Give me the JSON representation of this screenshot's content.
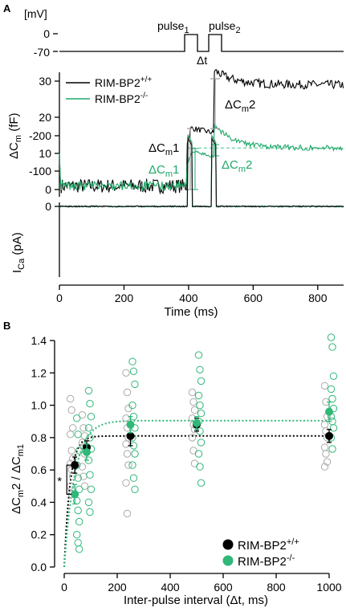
{
  "panel_a": {
    "label": "A",
    "voltage": {
      "unit": "[mV]",
      "tick_labels": [
        "0",
        "-70"
      ],
      "pulse1": {
        "base": "pulse",
        "sub": "1"
      },
      "pulse2": {
        "base": "pulse",
        "sub": "2"
      },
      "delta_t": "Δt"
    },
    "capacitance": {
      "ylabel_pre": "ΔC",
      "ylabel_sub": "m",
      "ylabel_post": " (fF)",
      "ticks": [
        "0",
        "10",
        "20",
        "30"
      ],
      "legend": [
        {
          "base": "RIM-BP2",
          "sup": "+/+",
          "color": "#000000"
        },
        {
          "base": "RIM-BP2",
          "sup": "-/-",
          "color": "#1fa868"
        }
      ],
      "annotations": {
        "wt_dcm1": {
          "pre": "ΔC",
          "sub": "m",
          "post": "1"
        },
        "wt_dcm2": {
          "pre": "ΔC",
          "sub": "m",
          "post": "2"
        },
        "ko_dcm1": {
          "pre": "ΔC",
          "sub": "m",
          "post": "1"
        },
        "ko_dcm2": {
          "pre": "ΔC",
          "sub": "m",
          "post": "2"
        }
      }
    },
    "current": {
      "ylabel_pre": "I",
      "ylabel_sub": "Ca",
      "ylabel_post": " (pA)",
      "ticks": [
        "0",
        "-100",
        "-200"
      ]
    },
    "time_axis": {
      "label": "Time (ms)",
      "ticks": [
        "0",
        "200",
        "400",
        "600",
        "800"
      ]
    }
  },
  "chart_data": {
    "type": "scatter",
    "panel_label": "B",
    "xlabel": "Inter-pulse interval (Δt, ms)",
    "ylabel": {
      "pre": "ΔC",
      "sub": "m",
      "mid": "2 / ΔC",
      "post": "m1"
    },
    "xlim": [
      0,
      1000
    ],
    "ylim": [
      0.0,
      1.4
    ],
    "xticks": [
      0,
      200,
      400,
      600,
      800,
      1000
    ],
    "yticks": [
      "0.0",
      "0.2",
      "0.4",
      "0.6",
      "0.8",
      "1.0",
      "1.2",
      "1.4"
    ],
    "significance": "*",
    "legend_position": "bottom-right",
    "series": [
      {
        "name": "RIM-BP2",
        "sup": "+/+",
        "color": "#000000",
        "raw_color": "#aaaaaa",
        "fit_plateau": 0.81,
        "x": [
          40,
          85,
          250,
          500,
          1000
        ],
        "mean": [
          0.63,
          0.74,
          0.81,
          0.88,
          0.81
        ],
        "sem": [
          0.05,
          0.04,
          0.06,
          0.04,
          0.04
        ],
        "raw": [
          [
            1.04,
            0.97,
            0.86,
            0.82,
            0.72,
            0.67,
            0.64,
            0.6,
            0.56,
            0.5,
            0.45
          ],
          [
            0.94,
            0.86,
            0.81,
            0.77,
            0.74,
            0.7,
            0.62,
            0.56,
            0.5
          ],
          [
            1.2,
            1.08,
            0.98,
            0.92,
            0.86,
            0.8,
            0.76,
            0.7,
            0.63,
            0.52,
            0.33
          ],
          [
            1.08,
            1.02,
            0.97,
            0.92,
            0.88,
            0.85,
            0.8,
            0.72,
            0.64
          ],
          [
            1.12,
            1.02,
            0.93,
            0.88,
            0.84,
            0.8,
            0.74,
            0.7,
            0.65,
            0.62
          ]
        ]
      },
      {
        "name": "RIM-BP2",
        "sup": "-/-",
        "color": "#2fb878",
        "raw_color": "#2fb878",
        "fit_plateau": 0.905,
        "x": [
          40,
          85,
          250,
          500,
          1000
        ],
        "mean": [
          0.45,
          0.71,
          0.88,
          0.89,
          0.96
        ],
        "sem": [
          0.06,
          0.05,
          0.05,
          0.04,
          0.06
        ],
        "raw": [
          [
            0.92,
            0.82,
            0.72,
            0.63,
            0.55,
            0.48,
            0.41,
            0.35,
            0.28,
            0.2,
            0.15,
            0.11
          ],
          [
            1.09,
            1.01,
            0.93,
            0.86,
            0.8,
            0.73,
            0.66,
            0.57,
            0.48,
            0.4,
            0.34
          ],
          [
            1.27,
            1.21,
            1.13,
            1.0,
            0.93,
            0.86,
            0.8,
            0.75,
            0.7,
            0.63,
            0.55,
            0.48
          ],
          [
            1.31,
            1.22,
            1.15,
            1.06,
            1.0,
            0.95,
            0.9,
            0.84,
            0.77,
            0.7,
            0.62,
            0.52
          ],
          [
            1.42,
            1.36,
            1.18,
            1.1,
            1.04,
            0.98,
            0.93,
            0.9,
            0.86,
            0.8,
            0.73
          ]
        ]
      }
    ]
  }
}
